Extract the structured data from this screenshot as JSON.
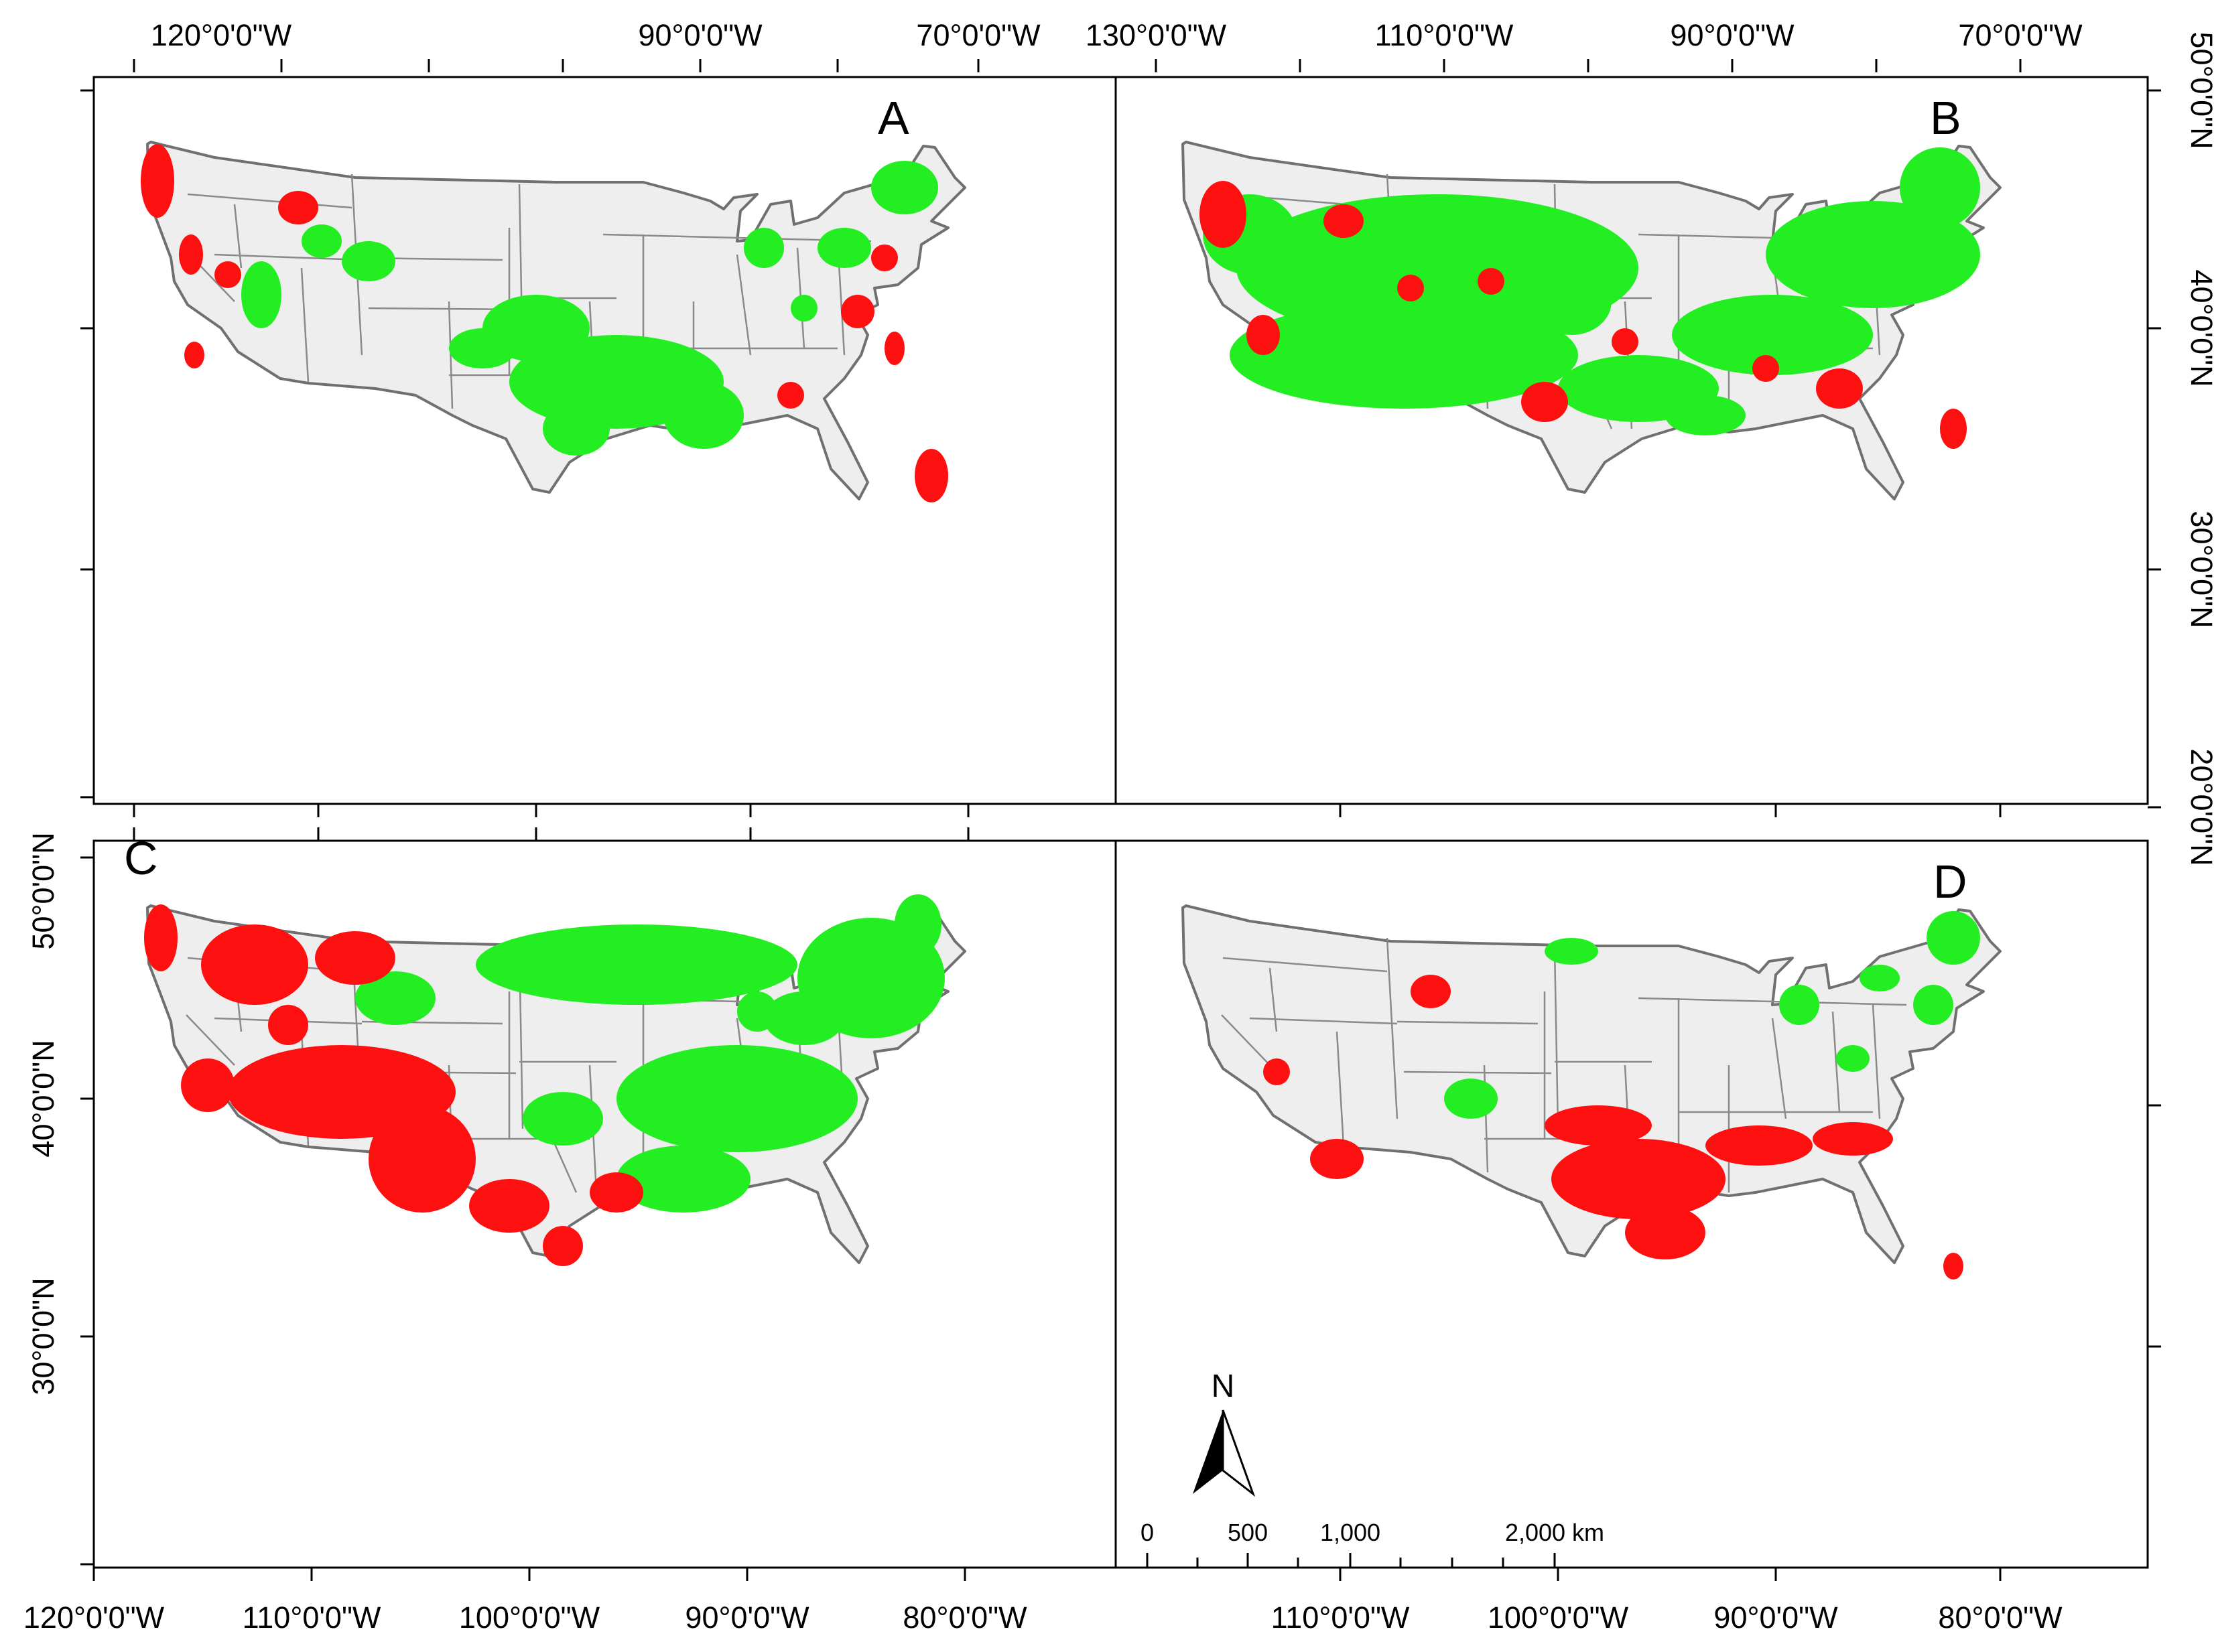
{
  "colors": {
    "green": "#22ee22",
    "red": "#ff1010",
    "land": "#eeeeee",
    "border": "#707070"
  },
  "axes": {
    "top_left": [
      "120°0'0\"W",
      "90°0'0\"W",
      "70°0'0\"W"
    ],
    "top_right": [
      "130°0'0\"W",
      "110°0'0\"W",
      "90°0'0\"W",
      "70°0'0\"W"
    ],
    "right_upper": [
      "50°0'0\"N",
      "40°0'0\"N",
      "30°0'0\"N",
      "20°0'0\"N"
    ],
    "left_lower": [
      "50°0'0\"N",
      "40°0'0\"N",
      "30°0'0\"N"
    ],
    "bottom_left": [
      "120°0'0\"W",
      "110°0'0\"W",
      "100°0'0\"W",
      "90°0'0\"W",
      "80°0'0\"W"
    ],
    "bottom_right": [
      "110°0'0\"W",
      "100°0'0\"W",
      "90°0'0\"W",
      "80°0'0\"W"
    ]
  },
  "panels": [
    {
      "label": "A"
    },
    {
      "label": "B"
    },
    {
      "label": "C"
    },
    {
      "label": "D"
    }
  ],
  "north_arrow": {
    "label": "N"
  },
  "scale_bar": {
    "labels": [
      "0",
      "500",
      "1,000",
      "2,000 km"
    ]
  }
}
